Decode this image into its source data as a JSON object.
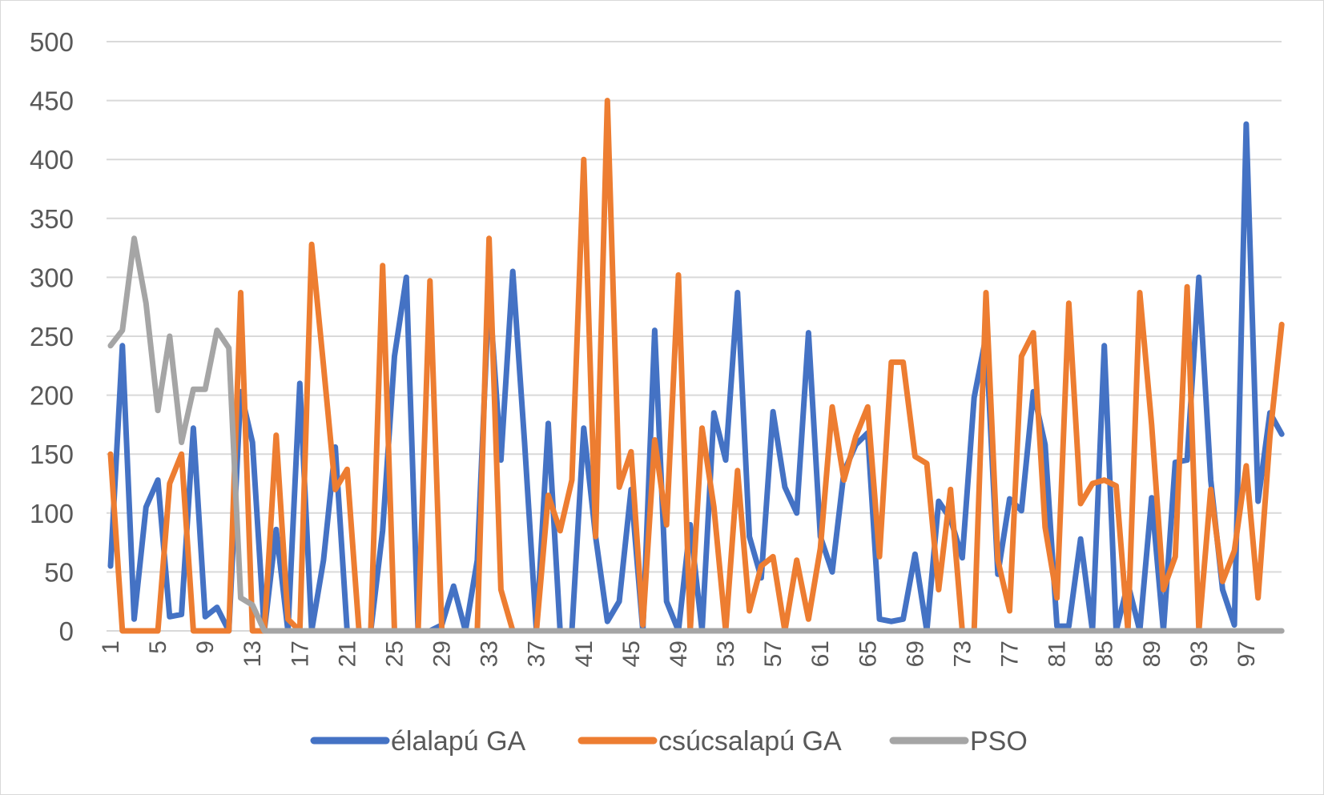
{
  "chart_data": {
    "type": "line",
    "title": "",
    "xlabel": "",
    "ylabel": "",
    "ylim": [
      0,
      500
    ],
    "yticks": [
      0,
      50,
      100,
      150,
      200,
      250,
      300,
      350,
      400,
      450,
      500
    ],
    "x": [
      1,
      2,
      3,
      4,
      5,
      6,
      7,
      8,
      9,
      10,
      11,
      12,
      13,
      14,
      15,
      16,
      17,
      18,
      19,
      20,
      21,
      22,
      23,
      24,
      25,
      26,
      27,
      28,
      29,
      30,
      31,
      32,
      33,
      34,
      35,
      36,
      37,
      38,
      39,
      40,
      41,
      42,
      43,
      44,
      45,
      46,
      47,
      48,
      49,
      50,
      51,
      52,
      53,
      54,
      55,
      56,
      57,
      58,
      59,
      60,
      61,
      62,
      63,
      64,
      65,
      66,
      67,
      68,
      69,
      70,
      71,
      72,
      73,
      74,
      75,
      76,
      77,
      78,
      79,
      80,
      81,
      82,
      83,
      84,
      85,
      86,
      87,
      88,
      89,
      90,
      91,
      92,
      93,
      94,
      95,
      96,
      97,
      98,
      99,
      100
    ],
    "xtick_labels": [
      "1",
      "5",
      "9",
      "13",
      "17",
      "21",
      "25",
      "29",
      "33",
      "37",
      "41",
      "45",
      "49",
      "53",
      "57",
      "61",
      "65",
      "69",
      "73",
      "77",
      "81",
      "85",
      "89",
      "93",
      "97"
    ],
    "grid": "horizontal",
    "legend_position": "bottom",
    "series": [
      {
        "name": "élalapú GA",
        "color": "#4472c4",
        "values": [
          55,
          242,
          10,
          105,
          128,
          12,
          14,
          172,
          12,
          20,
          0,
          203,
          160,
          0,
          86,
          0,
          210,
          0,
          60,
          156,
          0,
          0,
          0,
          85,
          233,
          300,
          0,
          0,
          5,
          38,
          0,
          60,
          290,
          145,
          305,
          160,
          0,
          176,
          0,
          0,
          172,
          80,
          8,
          25,
          120,
          0,
          255,
          25,
          0,
          90,
          0,
          185,
          145,
          287,
          80,
          45,
          186,
          122,
          100,
          253,
          80,
          50,
          135,
          158,
          168,
          10,
          8,
          10,
          65,
          0,
          110,
          95,
          62,
          198,
          250,
          48,
          112,
          102,
          203,
          158,
          4,
          4,
          78,
          0,
          242,
          0,
          40,
          0,
          113,
          0,
          143,
          145,
          300,
          128,
          35,
          5,
          430,
          110,
          185,
          167
        ]
      },
      {
        "name": "csúcsalapú GA",
        "color": "#ed7d31",
        "values": [
          150,
          0,
          0,
          0,
          0,
          125,
          150,
          0,
          0,
          0,
          0,
          287,
          0,
          0,
          166,
          10,
          0,
          328,
          225,
          120,
          137,
          0,
          0,
          310,
          0,
          0,
          0,
          297,
          0,
          0,
          0,
          0,
          333,
          35,
          0,
          0,
          0,
          115,
          85,
          128,
          400,
          80,
          450,
          122,
          152,
          5,
          162,
          90,
          302,
          0,
          172,
          105,
          0,
          136,
          17,
          55,
          63,
          0,
          60,
          10,
          70,
          190,
          128,
          165,
          190,
          63,
          228,
          228,
          148,
          142,
          35,
          120,
          0,
          0,
          287,
          60,
          17,
          233,
          253,
          88,
          28,
          278,
          108,
          125,
          128,
          123,
          0,
          287,
          175,
          35,
          63,
          292,
          0,
          120,
          42,
          68,
          140,
          28,
          165,
          260
        ]
      },
      {
        "name": "PSO",
        "color": "#a5a5a5",
        "values": [
          242,
          255,
          333,
          278,
          187,
          250,
          160,
          205,
          205,
          255,
          240,
          28,
          22,
          0,
          0,
          0,
          0,
          0,
          0,
          0,
          0,
          0,
          0,
          0,
          0,
          0,
          0,
          0,
          0,
          0,
          0,
          0,
          0,
          0,
          0,
          0,
          0,
          0,
          0,
          0,
          0,
          0,
          0,
          0,
          0,
          0,
          0,
          0,
          0,
          0,
          0,
          0,
          0,
          0,
          0,
          0,
          0,
          0,
          0,
          0,
          0,
          0,
          0,
          0,
          0,
          0,
          0,
          0,
          0,
          0,
          0,
          0,
          0,
          0,
          0,
          0,
          0,
          0,
          0,
          0,
          0,
          0,
          0,
          0,
          0,
          0,
          0,
          0,
          0,
          0,
          0,
          0,
          0,
          0,
          0,
          0,
          0,
          0,
          0,
          0
        ]
      }
    ]
  }
}
